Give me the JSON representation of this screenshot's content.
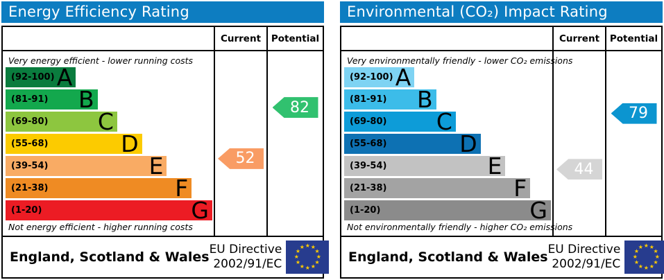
{
  "accent_colors": {
    "header_blue": "#0d7dc1",
    "eu_flag_blue": "#273c8e",
    "eu_star_yellow": "#ffcc00"
  },
  "panels": [
    {
      "title": "Energy Efficiency Rating",
      "columns": {
        "current": "Current",
        "potential": "Potential"
      },
      "caption_top": "Very energy efficient - lower running costs",
      "caption_bottom": "Not energy efficient - higher running costs",
      "bands": [
        {
          "range": "(92-100)",
          "letter": "A",
          "lo": 92,
          "hi": 100,
          "color": "#0a7c3e",
          "width_pct": 34
        },
        {
          "range": "(81-91)",
          "letter": "B",
          "lo": 81,
          "hi": 91,
          "color": "#13a84d",
          "width_pct": 44.5
        },
        {
          "range": "(69-80)",
          "letter": "C",
          "lo": 69,
          "hi": 80,
          "color": "#8dc63f",
          "width_pct": 54
        },
        {
          "range": "(55-68)",
          "letter": "D",
          "lo": 55,
          "hi": 68,
          "color": "#fccb00",
          "width_pct": 66
        },
        {
          "range": "(39-54)",
          "letter": "E",
          "lo": 39,
          "hi": 54,
          "color": "#f9ab64",
          "width_pct": 78
        },
        {
          "range": "(21-38)",
          "letter": "F",
          "lo": 21,
          "hi": 38,
          "color": "#ef8b23",
          "width_pct": 90
        },
        {
          "range": "(1-20)",
          "letter": "G",
          "lo": 1,
          "hi": 20,
          "color": "#ec1c24",
          "width_pct": 100
        }
      ],
      "arrows": {
        "current": {
          "value": 52,
          "color": "#f99c64"
        },
        "potential": {
          "value": 82,
          "color": "#31c16f"
        }
      },
      "footer": {
        "region": "England, Scotland & Wales",
        "directive_line1": "EU Directive",
        "directive_line2": "2002/91/EC"
      }
    },
    {
      "title": "Environmental (CO₂) Impact Rating",
      "columns": {
        "current": "Current",
        "potential": "Potential"
      },
      "caption_top": "Very environmentally friendly - lower CO₂ emissions",
      "caption_bottom": "Not environmentally friendly - higher CO₂ emissions",
      "bands": [
        {
          "range": "(92-100)",
          "letter": "A",
          "lo": 92,
          "hi": 100,
          "color": "#7ed3f3",
          "width_pct": 34
        },
        {
          "range": "(81-91)",
          "letter": "B",
          "lo": 81,
          "hi": 91,
          "color": "#3cbce9",
          "width_pct": 44.5
        },
        {
          "range": "(69-80)",
          "letter": "C",
          "lo": 69,
          "hi": 80,
          "color": "#0d9cd8",
          "width_pct": 54
        },
        {
          "range": "(55-68)",
          "letter": "D",
          "lo": 55,
          "hi": 68,
          "color": "#0d71b3",
          "width_pct": 66
        },
        {
          "range": "(39-54)",
          "letter": "E",
          "lo": 39,
          "hi": 54,
          "color": "#c2c2c2",
          "width_pct": 78
        },
        {
          "range": "(21-38)",
          "letter": "F",
          "lo": 21,
          "hi": 38,
          "color": "#a3a3a3",
          "width_pct": 90
        },
        {
          "range": "(1-20)",
          "letter": "G",
          "lo": 1,
          "hi": 20,
          "color": "#8b8b8b",
          "width_pct": 100
        }
      ],
      "arrows": {
        "current": {
          "value": 44,
          "color": "#d5d5d5"
        },
        "potential": {
          "value": 79,
          "color": "#0c95d0"
        }
      },
      "footer": {
        "region": "England, Scotland & Wales",
        "directive_line1": "EU Directive",
        "directive_line2": "2002/91/EC"
      }
    }
  ],
  "chart_data": [
    {
      "type": "bar",
      "title": "Energy Efficiency Rating",
      "categories": [
        "A (92-100)",
        "B (81-91)",
        "C (69-80)",
        "D (55-68)",
        "E (39-54)",
        "F (21-38)",
        "G (1-20)"
      ],
      "band_bar_widths_pct": [
        34,
        44.5,
        54,
        66,
        78,
        90,
        100
      ],
      "band_colors": [
        "#0a7c3e",
        "#13a84d",
        "#8dc63f",
        "#fccb00",
        "#f9ab64",
        "#ef8b23",
        "#ec1c24"
      ],
      "series": [
        {
          "name": "Current",
          "values": [
            52
          ],
          "band": "E"
        },
        {
          "name": "Potential",
          "values": [
            82
          ],
          "band": "B"
        }
      ],
      "value_range": [
        1,
        100
      ],
      "legend_position": "column-headers-right",
      "annotations": [
        "Very energy efficient - lower running costs",
        "Not energy efficient - higher running costs"
      ]
    },
    {
      "type": "bar",
      "title": "Environmental (CO₂) Impact Rating",
      "categories": [
        "A (92-100)",
        "B (81-91)",
        "C (69-80)",
        "D (55-68)",
        "E (39-54)",
        "F (21-38)",
        "G (1-20)"
      ],
      "band_bar_widths_pct": [
        34,
        44.5,
        54,
        66,
        78,
        90,
        100
      ],
      "band_colors": [
        "#7ed3f3",
        "#3cbce9",
        "#0d9cd8",
        "#0d71b3",
        "#c2c2c2",
        "#a3a3a3",
        "#8b8b8b"
      ],
      "series": [
        {
          "name": "Current",
          "values": [
            44
          ],
          "band": "E"
        },
        {
          "name": "Potential",
          "values": [
            79
          ],
          "band": "C"
        }
      ],
      "value_range": [
        1,
        100
      ],
      "legend_position": "column-headers-right",
      "annotations": [
        "Very environmentally friendly - lower CO₂ emissions",
        "Not environmentally friendly - higher CO₂ emissions"
      ]
    }
  ]
}
